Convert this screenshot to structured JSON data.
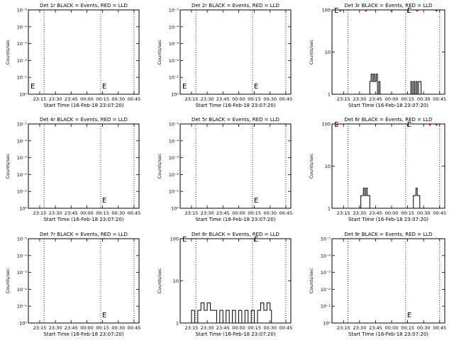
{
  "chart_data": [
    {
      "type": "line",
      "detector": "1r",
      "title": "Det 1r BLACK = Events, RED = LLD",
      "xlabel": "Start Time (16-Feb-18 23:07:20)",
      "ylabel": "Counts/sec",
      "yscale": "log",
      "y_ticks": [
        "10⁰",
        "10⁻¹",
        "10⁻²",
        "10⁻³",
        "10⁻⁴",
        "10⁻⁵"
      ],
      "x_ticks": [
        "23:15",
        "23:30",
        "23:45",
        "00:00",
        "00:15",
        "00:30",
        "00:45"
      ],
      "markers": [
        {
          "label": "E"
        },
        {
          "label": "E"
        }
      ],
      "black_series": [],
      "red_series": []
    },
    {
      "type": "line",
      "detector": "2r",
      "title": "Det 2r BLACK = Events, RED = LLD",
      "xlabel": "Start Time (16-Feb-18 23:07:20)",
      "ylabel": "Counts/sec",
      "yscale": "log",
      "y_ticks": [
        "10⁰",
        "10⁻¹",
        "10⁻²",
        "10⁻³",
        "10⁻⁴",
        "10⁻⁵"
      ],
      "x_ticks": [
        "23:15",
        "23:30",
        "23:45",
        "00:00",
        "00:15",
        "00:30",
        "00:45"
      ],
      "markers": [
        {
          "label": "E"
        },
        {
          "label": "E"
        }
      ],
      "black_series": [],
      "red_series": []
    },
    {
      "type": "line",
      "detector": "3r",
      "title": "Det 3r BLACK = Events, RED = LLD",
      "xlabel": "Start Time (16-Feb-18 23:07:20)",
      "ylabel": "Counts/sec",
      "yscale": "log",
      "y_ticks": [
        "100",
        "10",
        "1"
      ],
      "x_ticks": [
        "23:15",
        "23:30",
        "23:45",
        "00:00",
        "00:15",
        "00:30",
        "00:45"
      ],
      "markers": [
        {
          "label": "E"
        },
        {
          "label": "E"
        }
      ],
      "black_series": [
        [
          23.65,
          1
        ],
        [
          23.66,
          2
        ],
        [
          23.68,
          3
        ],
        [
          23.7,
          2
        ],
        [
          23.72,
          3
        ],
        [
          23.74,
          2
        ],
        [
          23.76,
          3
        ],
        [
          23.78,
          1
        ],
        [
          23.8,
          2
        ],
        [
          23.82,
          1
        ],
        [
          24.3,
          2
        ],
        [
          24.32,
          1
        ],
        [
          24.34,
          2
        ],
        [
          24.36,
          1
        ],
        [
          24.38,
          2
        ],
        [
          24.4,
          1
        ],
        [
          24.42,
          2
        ],
        [
          24.44,
          2
        ],
        [
          24.46,
          1
        ]
      ],
      "red_series": [
        [
          23.2,
          100
        ],
        [
          23.6,
          100
        ],
        [
          24.0,
          100
        ],
        [
          24.4,
          100
        ],
        [
          24.7,
          100
        ]
      ]
    },
    {
      "type": "line",
      "detector": "4r",
      "title": "Det 4r BLACK = Events, RED = LLD",
      "xlabel": "Start Time (16-Feb-18 23:07:20)",
      "ylabel": "Counts/sec",
      "yscale": "log",
      "y_ticks": [
        "10⁰",
        "10⁻¹",
        "10⁻²",
        "10⁻³",
        "10⁻⁴",
        "10⁻⁵"
      ],
      "x_ticks": [
        "23:15",
        "23:30",
        "23:45",
        "00:00",
        "00:15",
        "00:30",
        "00:45"
      ],
      "markers": [
        {
          "label": "E"
        }
      ],
      "black_series": [],
      "red_series": []
    },
    {
      "type": "line",
      "detector": "5r",
      "title": "Det 5r BLACK = Events, RED = LLD",
      "xlabel": "Start Time (16-Feb-18 23:07:20)",
      "ylabel": "Counts/sec",
      "yscale": "log",
      "y_ticks": [
        "10⁰",
        "10⁻¹",
        "10⁻²",
        "10⁻³",
        "10⁻⁴",
        "10⁻⁵"
      ],
      "x_ticks": [
        "23:15",
        "23:30",
        "23:45",
        "00:00",
        "00:15",
        "00:30",
        "00:45"
      ],
      "markers": [
        {
          "label": "E"
        }
      ],
      "black_series": [],
      "red_series": []
    },
    {
      "type": "line",
      "detector": "6r",
      "title": "Det 6r BLACK = Events, RED = LLD",
      "xlabel": "Start Time (16-Feb-18 23:07:20)",
      "ylabel": "Counts/sec",
      "yscale": "log",
      "y_ticks": [
        "100",
        "10",
        "1"
      ],
      "x_ticks": [
        "23:15",
        "23:30",
        "23:45",
        "00:00",
        "00:15",
        "00:30",
        "00:45"
      ],
      "markers": [
        {
          "label": "E"
        },
        {
          "label": "E"
        }
      ],
      "black_series": [
        [
          23.5,
          1
        ],
        [
          23.52,
          2
        ],
        [
          23.54,
          2
        ],
        [
          23.56,
          3
        ],
        [
          23.58,
          2
        ],
        [
          23.6,
          3
        ],
        [
          23.62,
          2
        ],
        [
          23.64,
          2
        ],
        [
          23.66,
          1
        ],
        [
          24.3,
          1
        ],
        [
          24.34,
          2
        ],
        [
          24.36,
          2
        ],
        [
          24.38,
          3
        ],
        [
          24.4,
          2
        ],
        [
          24.42,
          2
        ],
        [
          24.44,
          1
        ]
      ],
      "red_series": [
        [
          23.15,
          100
        ],
        [
          24.6,
          100
        ],
        [
          24.7,
          100
        ]
      ]
    },
    {
      "type": "line",
      "detector": "7r",
      "title": "Det 7r BLACK = Events, RED = LLD",
      "xlabel": "Start Time (16-Feb-18 23:07:20)",
      "ylabel": "Counts/sec",
      "yscale": "log",
      "y_ticks": [
        "10⁰",
        "10⁻¹",
        "10⁻²",
        "10⁻³",
        "10⁻⁴",
        "10⁻⁵"
      ],
      "x_ticks": [
        "23:15",
        "23:30",
        "23:45",
        "00:00",
        "00:15",
        "00:30",
        "00:45"
      ],
      "markers": [
        {
          "label": "E"
        }
      ],
      "black_series": [],
      "red_series": []
    },
    {
      "type": "line",
      "detector": "8r",
      "title": "Det 8r BLACK = Events, RED = LLD",
      "xlabel": "Start Time (16-Feb-18 23:07:20)",
      "ylabel": "Counts/sec",
      "yscale": "log",
      "y_ticks": [
        "100",
        "10",
        "1"
      ],
      "x_ticks": [
        "23:15",
        "23:30",
        "23:45",
        "00:00",
        "00:15",
        "00:30",
        "00:45"
      ],
      "markers": [
        {
          "label": "E"
        },
        {
          "label": "E"
        }
      ],
      "black_series": [
        [
          23.2,
          1
        ],
        [
          23.25,
          2
        ],
        [
          23.3,
          1
        ],
        [
          23.35,
          2
        ],
        [
          23.4,
          3
        ],
        [
          23.45,
          2
        ],
        [
          23.5,
          3
        ],
        [
          23.55,
          2
        ],
        [
          23.6,
          2
        ],
        [
          23.65,
          1
        ],
        [
          23.7,
          2
        ],
        [
          23.75,
          1
        ],
        [
          23.8,
          2
        ],
        [
          23.85,
          1
        ],
        [
          23.9,
          2
        ],
        [
          23.95,
          1
        ],
        [
          24.0,
          2
        ],
        [
          24.05,
          1
        ],
        [
          24.1,
          2
        ],
        [
          24.15,
          1
        ],
        [
          24.2,
          2
        ],
        [
          24.25,
          1
        ],
        [
          24.3,
          2
        ],
        [
          24.35,
          3
        ],
        [
          24.4,
          2
        ],
        [
          24.45,
          3
        ],
        [
          24.5,
          2
        ]
      ],
      "red_series": []
    },
    {
      "type": "line",
      "detector": "9r",
      "title": "Det 9r BLACK = Events, RED = LLD",
      "xlabel": "Start Time (16-Feb-18 23:07:20)",
      "ylabel": "Counts/sec",
      "yscale": "log",
      "y_ticks": [
        "10⁰",
        "10⁻¹",
        "10⁻²",
        "10⁻³",
        "10⁻⁴",
        "10⁻⁵"
      ],
      "x_ticks": [
        "23:15",
        "23:30",
        "23:45",
        "00:00",
        "00:15",
        "00:30",
        "00:45"
      ],
      "markers": [
        {
          "label": "E"
        }
      ],
      "black_series": [],
      "red_series": []
    }
  ]
}
